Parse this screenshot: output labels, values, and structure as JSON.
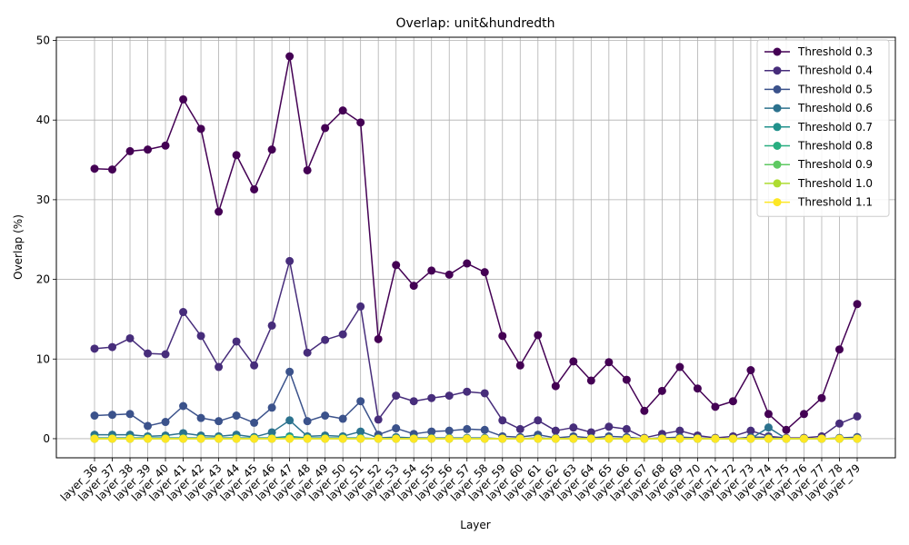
{
  "chart_data": {
    "type": "line",
    "title": "Overlap: unit&hundredth",
    "xlabel": "Layer",
    "ylabel": "Overlap (%)",
    "ylim": [
      -2.4,
      50.4
    ],
    "yticks": [
      0,
      10,
      20,
      30,
      40,
      50
    ],
    "grid": true,
    "legend_position": "top-right",
    "categories": [
      "layer_36",
      "layer_37",
      "layer_38",
      "layer_39",
      "layer_40",
      "layer_41",
      "layer_42",
      "layer_43",
      "layer_44",
      "layer_45",
      "layer_46",
      "layer_47",
      "layer_48",
      "layer_49",
      "layer_50",
      "layer_51",
      "layer_52",
      "layer_53",
      "layer_54",
      "layer_55",
      "layer_56",
      "layer_57",
      "layer_58",
      "layer_59",
      "layer_60",
      "layer_61",
      "layer_62",
      "layer_63",
      "layer_64",
      "layer_65",
      "layer_66",
      "layer_67",
      "layer_68",
      "layer_69",
      "layer_70",
      "layer_71",
      "layer_72",
      "layer_73",
      "layer_74",
      "layer_75",
      "layer_76",
      "layer_77",
      "layer_78",
      "layer_79"
    ],
    "series": [
      {
        "name": "Threshold 0.3",
        "color": "#440154",
        "values": [
          33.9,
          33.8,
          36.1,
          36.3,
          36.8,
          42.6,
          38.9,
          28.5,
          35.6,
          31.3,
          36.3,
          48.0,
          33.7,
          39.0,
          41.2,
          39.7,
          12.5,
          21.8,
          19.2,
          21.1,
          20.6,
          22.0,
          20.9,
          12.9,
          9.2,
          13.0,
          6.6,
          9.7,
          7.3,
          9.6,
          7.4,
          3.5,
          6.0,
          9.0,
          6.3,
          4.0,
          4.7,
          8.6,
          3.1,
          1.1,
          3.1,
          5.1,
          11.2,
          16.9
        ]
      },
      {
        "name": "Threshold 0.4",
        "color": "#472d7b",
        "values": [
          11.3,
          11.5,
          12.6,
          10.7,
          10.6,
          15.9,
          12.9,
          9.0,
          12.2,
          9.2,
          14.2,
          22.3,
          10.8,
          12.4,
          13.1,
          16.6,
          2.4,
          5.4,
          4.7,
          5.1,
          5.4,
          5.9,
          5.7,
          2.3,
          1.2,
          2.3,
          1.0,
          1.4,
          0.8,
          1.5,
          1.2,
          0.1,
          0.6,
          1.0,
          0.4,
          0.1,
          0.3,
          1.0,
          0.3,
          0.1,
          0.1,
          0.3,
          1.9,
          2.8
        ]
      },
      {
        "name": "Threshold 0.5",
        "color": "#3b528b",
        "values": [
          2.9,
          3.0,
          3.1,
          1.6,
          2.1,
          4.1,
          2.6,
          2.2,
          2.9,
          2.0,
          3.9,
          8.4,
          2.2,
          2.9,
          2.5,
          4.7,
          0.5,
          1.3,
          0.6,
          0.9,
          1.0,
          1.2,
          1.1,
          0.3,
          0.2,
          0.5,
          0.1,
          0.3,
          0.1,
          0.3,
          0.2,
          0.0,
          0.1,
          0.2,
          0.1,
          0.0,
          0.0,
          0.2,
          0.2,
          0.0,
          0.0,
          0.0,
          0.1,
          0.2
        ]
      },
      {
        "name": "Threshold 0.6",
        "color": "#2c728e",
        "values": [
          0.5,
          0.5,
          0.5,
          0.3,
          0.4,
          0.7,
          0.4,
          0.3,
          0.5,
          0.2,
          0.8,
          2.3,
          0.3,
          0.4,
          0.3,
          0.9,
          0.1,
          0.2,
          0.1,
          0.1,
          0.1,
          0.1,
          0.1,
          0.0,
          0.0,
          0.1,
          0.0,
          0.0,
          0.0,
          0.0,
          0.0,
          0.0,
          0.0,
          0.0,
          0.0,
          0.0,
          0.0,
          0.0,
          1.4,
          0.0,
          0.0,
          0.0,
          0.0,
          0.0
        ]
      },
      {
        "name": "Threshold 0.7",
        "color": "#21918c",
        "values": [
          0.1,
          0.1,
          0.1,
          0.1,
          0.1,
          0.1,
          0.1,
          0.1,
          0.1,
          0.1,
          0.1,
          0.3,
          0.1,
          0.1,
          0.1,
          0.1,
          0.0,
          0.0,
          0.0,
          0.0,
          0.0,
          0.0,
          0.0,
          0.0,
          0.0,
          0.0,
          0.0,
          0.0,
          0.0,
          0.0,
          0.0,
          0.0,
          0.0,
          0.0,
          0.0,
          0.0,
          0.0,
          0.0,
          0.0,
          0.0,
          0.0,
          0.0,
          0.0,
          0.0
        ]
      },
      {
        "name": "Threshold 0.8",
        "color": "#28ae80",
        "values": [
          0.0,
          0.0,
          0.0,
          0.0,
          0.0,
          0.0,
          0.0,
          0.0,
          0.0,
          0.0,
          0.0,
          0.1,
          0.0,
          0.0,
          0.0,
          0.0,
          0.0,
          0.0,
          0.0,
          0.0,
          0.0,
          0.0,
          0.0,
          0.0,
          0.0,
          0.0,
          0.0,
          0.0,
          0.0,
          0.0,
          0.0,
          0.0,
          0.0,
          0.0,
          0.0,
          0.0,
          0.0,
          0.0,
          0.0,
          0.0,
          0.0,
          0.0,
          0.0,
          0.0
        ]
      },
      {
        "name": "Threshold 0.9",
        "color": "#5ec962",
        "values": [
          0.0,
          0.0,
          0.0,
          0.0,
          0.0,
          0.0,
          0.0,
          0.0,
          0.0,
          0.0,
          0.0,
          0.0,
          0.0,
          0.0,
          0.0,
          0.0,
          0.0,
          0.0,
          0.0,
          0.0,
          0.0,
          0.0,
          0.0,
          0.0,
          0.0,
          0.0,
          0.0,
          0.0,
          0.0,
          0.0,
          0.0,
          0.0,
          0.0,
          0.0,
          0.0,
          0.0,
          0.0,
          0.0,
          0.0,
          0.0,
          0.0,
          0.0,
          0.0,
          0.0
        ]
      },
      {
        "name": "Threshold 1.0",
        "color": "#addc30",
        "values": [
          0.0,
          0.0,
          0.0,
          0.0,
          0.0,
          0.0,
          0.0,
          0.0,
          0.0,
          0.0,
          0.0,
          0.0,
          0.0,
          0.0,
          0.0,
          0.0,
          0.0,
          0.0,
          0.0,
          0.0,
          0.0,
          0.0,
          0.0,
          0.0,
          0.0,
          0.0,
          0.0,
          0.0,
          0.0,
          0.0,
          0.0,
          0.0,
          0.0,
          0.0,
          0.0,
          0.0,
          0.0,
          0.0,
          0.0,
          0.0,
          0.0,
          0.0,
          0.0,
          0.0
        ]
      },
      {
        "name": "Threshold 1.1",
        "color": "#fde725",
        "values": [
          0.0,
          0.0,
          0.0,
          0.0,
          0.0,
          0.0,
          0.0,
          0.0,
          0.0,
          0.0,
          0.0,
          0.0,
          0.0,
          0.0,
          0.0,
          0.0,
          0.0,
          0.0,
          0.0,
          0.0,
          0.0,
          0.0,
          0.0,
          0.0,
          0.0,
          0.0,
          0.0,
          0.0,
          0.0,
          0.0,
          0.0,
          0.0,
          0.0,
          0.0,
          0.0,
          0.0,
          0.0,
          0.0,
          0.0,
          0.0,
          0.0,
          0.0,
          0.0,
          0.0
        ]
      }
    ]
  }
}
